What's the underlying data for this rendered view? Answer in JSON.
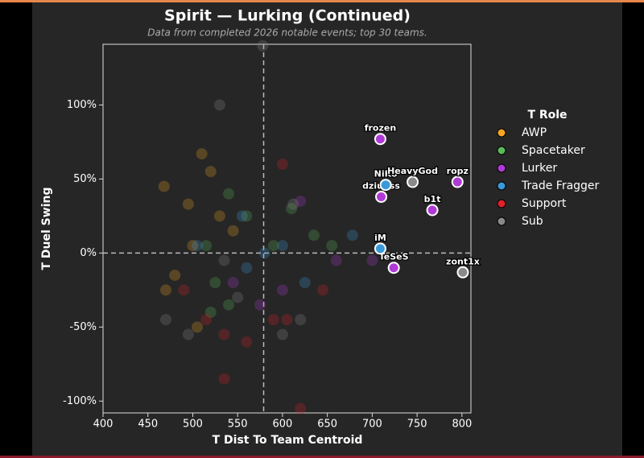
{
  "chart_data": {
    "type": "scatter",
    "title": "Spirit — Lurking (Continued)",
    "subtitle": "Data from completed 2026 notable events; top 30 teams.",
    "x_label": "T Dist To Team Centroid",
    "y_label": "T Duel Swing",
    "legend_title": "T Role",
    "xlim": [
      400,
      810
    ],
    "ylim": [
      -108,
      141
    ],
    "xticks": [
      400,
      450,
      500,
      550,
      600,
      650,
      700,
      750,
      800
    ],
    "yticks": [
      {
        "value": -100,
        "label": "-100%"
      },
      {
        "value": -50,
        "label": "-50%"
      },
      {
        "value": 0,
        "label": "0%"
      },
      {
        "value": 50,
        "label": "50%"
      },
      {
        "value": 100,
        "label": "100%"
      }
    ],
    "vline": 579,
    "hline": 0,
    "series": [
      {
        "name": "AWP",
        "color": "#f5a623",
        "x": [
          468,
          495,
          510,
          520,
          530,
          480,
          470,
          505,
          545,
          500
        ],
        "values": [
          45,
          33,
          67,
          55,
          25,
          -15,
          -25,
          -50,
          15,
          5
        ],
        "labels": [
          null,
          null,
          null,
          null,
          null,
          null,
          null,
          null,
          null,
          null
        ]
      },
      {
        "name": "Spacetaker",
        "color": "#5cb85c",
        "x": [
          515,
          525,
          540,
          560,
          590,
          610,
          635,
          655,
          540,
          520
        ],
        "values": [
          5,
          -20,
          -35,
          25,
          5,
          30,
          12,
          5,
          40,
          -40
        ],
        "labels": [
          null,
          null,
          null,
          null,
          null,
          null,
          null,
          null,
          null,
          null
        ]
      },
      {
        "name": "Lurker",
        "color": "#b03ad6",
        "x": [
          545,
          575,
          600,
          620,
          660,
          700,
          709,
          795,
          710,
          767,
          724
        ],
        "values": [
          -20,
          -35,
          -25,
          35,
          -5,
          -5,
          77,
          48,
          38,
          29,
          -10
        ],
        "labels": [
          null,
          null,
          null,
          null,
          null,
          null,
          "frozen",
          "ropz",
          "dziugss",
          "b1t",
          "TeSeS"
        ]
      },
      {
        "name": "Trade Fragger",
        "color": "#3a9ad9",
        "x": [
          505,
          560,
          580,
          625,
          678,
          555,
          600,
          715,
          709
        ],
        "values": [
          5,
          -10,
          0,
          -20,
          12,
          25,
          5,
          46,
          3
        ],
        "labels": [
          null,
          null,
          null,
          null,
          null,
          null,
          null,
          "NiKo",
          "iM"
        ]
      },
      {
        "name": "Support",
        "color": "#e0202a",
        "x": [
          490,
          515,
          535,
          560,
          590,
          605,
          620,
          600,
          535,
          645
        ],
        "values": [
          -25,
          -45,
          -55,
          -60,
          -45,
          -45,
          -105,
          60,
          -85,
          -25
        ],
        "labels": [
          null,
          null,
          null,
          null,
          null,
          null,
          null,
          null,
          null,
          null
        ]
      },
      {
        "name": "Sub",
        "color": "#8a8a8a",
        "x": [
          530,
          495,
          470,
          550,
          600,
          620,
          612,
          535,
          578,
          745,
          801
        ],
        "values": [
          100,
          -55,
          -45,
          -30,
          -55,
          -45,
          33,
          -5,
          140,
          48,
          -13
        ],
        "labels": [
          null,
          null,
          null,
          null,
          null,
          null,
          null,
          null,
          null,
          "HeavyGod",
          "zont1x"
        ]
      }
    ]
  }
}
